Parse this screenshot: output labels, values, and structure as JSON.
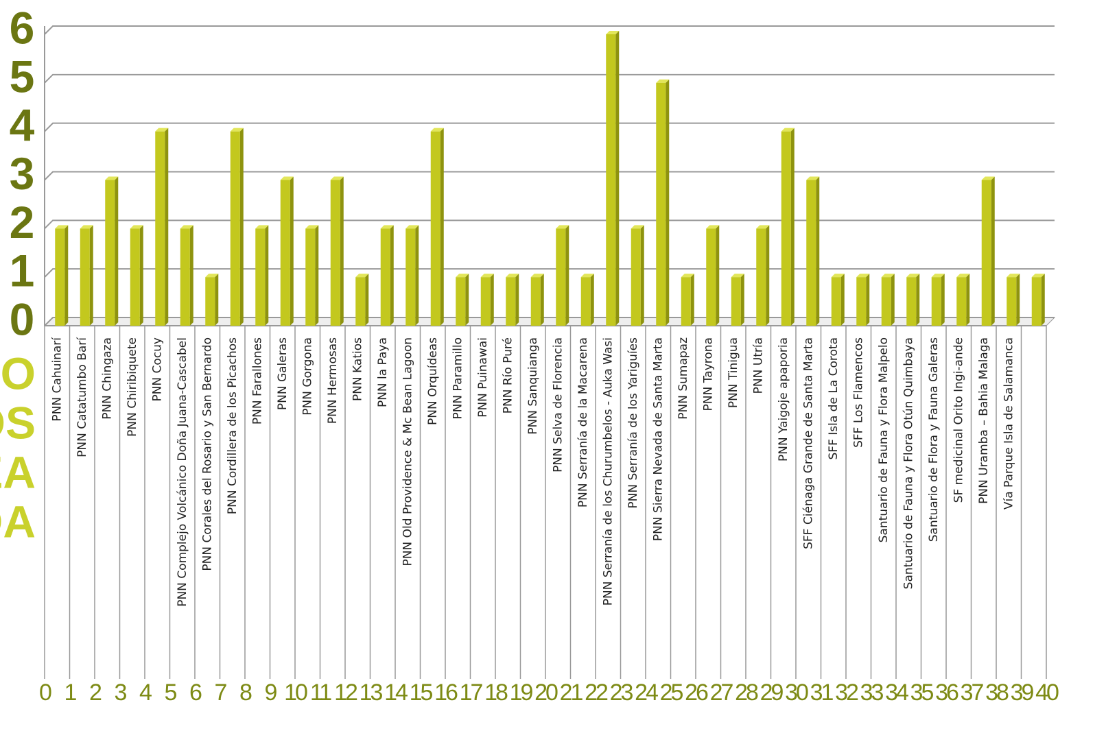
{
  "chart_data": {
    "type": "bar",
    "categories": [
      "PNN Cahuinarí",
      "PNN Catatumbo Barí",
      "PNN Chingaza",
      "PNN Chiribiquete",
      "PNN Cocuy",
      "PNN Complejo Volcánico Doña Juana-Cascabel",
      "PNN Corales del Rosario y San Bernardo",
      "PNN Cordillera de los Picachos",
      "PNN Farallones",
      "PNN Galeras",
      "PNN Gorgona",
      "PNN Hermosas",
      "PNN Katios",
      "PNN la Paya",
      "PNN Old Providence & Mc Bean Lagoon",
      "PNN Orquídeas",
      "PNN Paramillo",
      "PNN Puinawai",
      "PNN Río Puré",
      "PNN Sanquianga",
      "PNN Selva de Florencia",
      "PNN Serranía de la Macarena",
      "PNN Serranía de los Churumbelos - Auka Wasi",
      "PNN Serranía de los Yariguíes",
      "PNN Sierra Nevada de Santa Marta",
      "PNN Sumapaz",
      "PNN Tayrona",
      "PNN Tinigua",
      "PNN Utría",
      "PNN Yaigoje apaporia",
      "SFF Ciénaga Grande de Santa Marta",
      "SFF Isla de La Corota",
      "SFF Los Flamencos",
      "Santuario de Fauna y Flora Malpelo",
      "Santuario de Fauna y Flora Otún Quimbaya",
      "Santuario de Flora y Fauna Galeras",
      "SF medicinal Orito Ingi-ande",
      "PNN Uramba – Bahia Malaga",
      "Vía Parque Isla de Salamanca",
      null
    ],
    "values": [
      2,
      2,
      3,
      2,
      4,
      2,
      1,
      4,
      2,
      3,
      2,
      3,
      1,
      2,
      2,
      4,
      1,
      1,
      1,
      1,
      2,
      1,
      6,
      2,
      5,
      1,
      2,
      1,
      2,
      4,
      3,
      1,
      1,
      1,
      1,
      1,
      1,
      3,
      1,
      1
    ],
    "color": "#c3c81e",
    "ylim": [
      0,
      6
    ],
    "yticks": [
      0,
      1,
      2,
      3,
      4,
      5,
      6
    ],
    "xlim": [
      0,
      40
    ],
    "xticks": [
      0,
      1,
      2,
      3,
      4,
      5,
      6,
      7,
      8,
      9,
      10,
      11,
      12,
      13,
      14,
      15,
      16,
      17,
      18,
      19,
      20,
      21,
      22,
      23,
      24,
      25,
      26,
      27,
      28,
      29,
      30,
      31,
      32,
      33,
      34,
      35,
      36,
      37,
      38,
      39,
      40
    ],
    "grid": true,
    "side_text": [
      "RO",
      "OS",
      "EA",
      "DA"
    ]
  }
}
